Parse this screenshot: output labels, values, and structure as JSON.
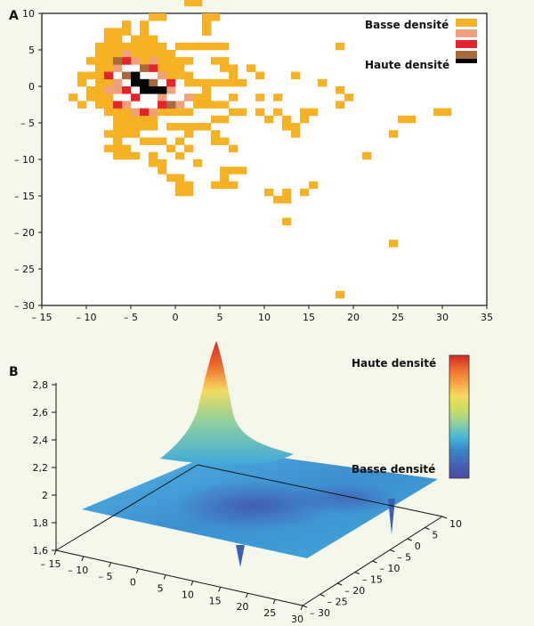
{
  "panels": {
    "a": "A",
    "b": "B"
  },
  "chart_data": [
    {
      "type": "heatmap",
      "panel": "A",
      "title": "",
      "xlabel": "",
      "ylabel": "",
      "xlim": [
        -15,
        35
      ],
      "ylim": [
        -30,
        10
      ],
      "xticks": [
        -15,
        -10,
        -5,
        0,
        5,
        10,
        15,
        20,
        25,
        30,
        35
      ],
      "yticks": [
        10,
        5,
        0,
        -5,
        -10,
        -15,
        -20,
        -25,
        -30
      ],
      "xtick_labels": [
        "– 15",
        "– 10",
        "– 5",
        "0",
        "5",
        "10",
        "15",
        "20",
        "25",
        "30",
        "35"
      ],
      "ytick_labels": [
        "10",
        "5",
        "0",
        "– 5",
        "– 10",
        "– 15",
        "– 20",
        "– 25",
        "– 30"
      ],
      "grid": false,
      "legend": {
        "placement": "top-right",
        "label_low": "Basse densité",
        "label_high": "Haute densité",
        "levels": [
          "#f7b125",
          "#f0a07a",
          "#e8222c",
          "#a86a3a",
          "#000000"
        ]
      },
      "cell_size": 1,
      "cells": [
        {
          "x": -5,
          "y": 0,
          "level": 4
        },
        {
          "x": -4,
          "y": 0,
          "level": 4
        },
        {
          "x": -5,
          "y": 1,
          "level": 4
        },
        {
          "x": -4,
          "y": -1,
          "level": 4
        },
        {
          "x": -3,
          "y": -1,
          "level": 4
        },
        {
          "x": -2,
          "y": -1,
          "level": 4
        },
        {
          "x": -7,
          "y": 3,
          "level": 3
        },
        {
          "x": -6,
          "y": 1,
          "level": 3
        },
        {
          "x": -3,
          "y": 0,
          "level": 3
        },
        {
          "x": -1,
          "y": -3,
          "level": 3
        },
        {
          "x": -4,
          "y": 2,
          "level": 3
        },
        {
          "x": -8,
          "y": 1,
          "level": 2
        },
        {
          "x": -6,
          "y": 3,
          "level": 2
        },
        {
          "x": -3,
          "y": 2,
          "level": 2
        },
        {
          "x": -6,
          "y": -1,
          "level": 2
        },
        {
          "x": -2,
          "y": -3,
          "level": 2
        },
        {
          "x": -5,
          "y": -2,
          "level": 2
        },
        {
          "x": -7,
          "y": -3,
          "level": 2
        },
        {
          "x": -1,
          "y": 0,
          "level": 2
        },
        {
          "x": -4,
          "y": -4,
          "level": 2
        },
        {
          "x": -7,
          "y": 2,
          "level": 1
        },
        {
          "x": -5,
          "y": 3,
          "level": 1
        },
        {
          "x": -3,
          "y": 3,
          "level": 1
        },
        {
          "x": -2,
          "y": 1,
          "level": 1
        },
        {
          "x": -7,
          "y": 0,
          "level": 1
        },
        {
          "x": -7,
          "y": -1,
          "level": 1
        },
        {
          "x": -1,
          "y": -1,
          "level": 1
        },
        {
          "x": -2,
          "y": -2,
          "level": 1
        },
        {
          "x": 0,
          "y": -3,
          "level": 1
        },
        {
          "x": -6,
          "y": -3,
          "level": 1
        },
        {
          "x": -3,
          "y": -4,
          "level": 1
        },
        {
          "x": -6,
          "y": 4,
          "level": 1
        },
        {
          "x": 1,
          "y": -2,
          "level": 1
        },
        {
          "x": -8,
          "y": -1,
          "level": 1
        },
        {
          "x": -5,
          "y": -4,
          "level": 1
        }
      ],
      "low_cells": [
        [
          -9,
          3
        ],
        [
          -10,
          3
        ],
        [
          -11,
          1
        ],
        [
          -11,
          0
        ],
        [
          -10,
          1
        ],
        [
          -10,
          -1
        ],
        [
          -10,
          -2
        ],
        [
          -11,
          -3
        ],
        [
          -12,
          -2
        ],
        [
          -9,
          5
        ],
        [
          -8,
          5
        ],
        [
          -7,
          6
        ],
        [
          -6,
          7
        ],
        [
          -5,
          6
        ],
        [
          -4,
          7
        ],
        [
          -3,
          6
        ],
        [
          -2,
          5
        ],
        [
          -1,
          4
        ],
        [
          0,
          3
        ],
        [
          1,
          3
        ],
        [
          -8,
          6
        ],
        [
          -9,
          4
        ],
        [
          -8,
          4
        ],
        [
          -8,
          3
        ],
        [
          -9,
          2
        ],
        [
          -8,
          2
        ],
        [
          -9,
          1
        ],
        [
          -9,
          0
        ],
        [
          -8,
          0
        ],
        [
          -9,
          -1
        ],
        [
          -9,
          -2
        ],
        [
          -8,
          -2
        ],
        [
          -9,
          -3
        ],
        [
          -8,
          -3
        ],
        [
          -8,
          -4
        ],
        [
          -7,
          -4
        ],
        [
          -6,
          -4
        ],
        [
          -7,
          -5
        ],
        [
          -6,
          -5
        ],
        [
          -5,
          -5
        ],
        [
          -4,
          -5
        ],
        [
          -3,
          -5
        ],
        [
          -2,
          -4
        ],
        [
          -1,
          -4
        ],
        [
          0,
          -4
        ],
        [
          1,
          -4
        ],
        [
          2,
          -3
        ],
        [
          2,
          -2
        ],
        [
          3,
          -2
        ],
        [
          3,
          -1
        ],
        [
          2,
          0
        ],
        [
          1,
          0
        ],
        [
          1,
          1
        ],
        [
          0,
          1
        ],
        [
          -1,
          1
        ],
        [
          -1,
          2
        ],
        [
          0,
          2
        ],
        [
          -2,
          2
        ],
        [
          -2,
          3
        ],
        [
          -1,
          3
        ],
        [
          -4,
          3
        ],
        [
          -4,
          4
        ],
        [
          -5,
          4
        ],
        [
          -3,
          4
        ],
        [
          -2,
          4
        ],
        [
          -7,
          4
        ],
        [
          -6,
          5
        ],
        [
          -5,
          5
        ],
        [
          -4,
          5
        ],
        [
          -4,
          6
        ],
        [
          -3,
          5
        ],
        [
          -7,
          5
        ],
        [
          -4,
          8
        ],
        [
          -6,
          8
        ],
        [
          -3,
          9
        ],
        [
          -2,
          9
        ],
        [
          -3,
          12
        ],
        [
          -2,
          12
        ],
        [
          -4,
          13
        ],
        [
          0,
          13
        ],
        [
          1,
          13
        ],
        [
          2,
          13
        ],
        [
          3,
          13
        ],
        [
          1,
          12
        ],
        [
          2,
          12
        ],
        [
          1,
          11
        ],
        [
          2,
          11
        ],
        [
          0,
          5
        ],
        [
          1,
          5
        ],
        [
          2,
          5
        ],
        [
          3,
          5
        ],
        [
          4,
          5
        ],
        [
          5,
          5
        ],
        [
          4,
          3
        ],
        [
          5,
          3
        ],
        [
          5,
          2
        ],
        [
          6,
          2
        ],
        [
          3,
          0
        ],
        [
          4,
          0
        ],
        [
          5,
          0
        ],
        [
          6,
          1
        ],
        [
          6,
          0
        ],
        [
          7,
          0
        ],
        [
          3,
          -3
        ],
        [
          4,
          -3
        ],
        [
          5,
          -3
        ],
        [
          6,
          -4
        ],
        [
          7,
          -4
        ],
        [
          6,
          -2
        ],
        [
          4,
          -5
        ],
        [
          5,
          -5
        ],
        [
          3,
          -6
        ],
        [
          2,
          -6
        ],
        [
          1,
          -6
        ],
        [
          0,
          -6
        ],
        [
          -1,
          -6
        ],
        [
          -6,
          -6
        ],
        [
          -5,
          -6
        ],
        [
          -4,
          -6
        ],
        [
          -3,
          -6
        ],
        [
          -7,
          -6
        ],
        [
          -8,
          -7
        ],
        [
          -7,
          -7
        ],
        [
          -6,
          -7
        ],
        [
          -5,
          -7
        ],
        [
          -4,
          -8
        ],
        [
          -3,
          -8
        ],
        [
          -2,
          -8
        ],
        [
          -7,
          -8
        ],
        [
          -8,
          -9
        ],
        [
          -7,
          -9
        ],
        [
          -6,
          -9
        ],
        [
          -5,
          -10
        ],
        [
          -6,
          -10
        ],
        [
          -7,
          -10
        ],
        [
          -3,
          -10
        ],
        [
          -2,
          -11
        ],
        [
          -3,
          -11
        ],
        [
          1,
          -9
        ],
        [
          0,
          -10
        ],
        [
          2,
          -11
        ],
        [
          4,
          -8
        ],
        [
          4,
          -7
        ],
        [
          5,
          -8
        ],
        [
          6,
          -9
        ],
        [
          0,
          -8
        ],
        [
          1,
          -7
        ],
        [
          -1,
          -9
        ],
        [
          -2,
          -12
        ],
        [
          -1,
          -13
        ],
        [
          0,
          -13
        ],
        [
          0,
          -14
        ],
        [
          1,
          -14
        ],
        [
          0,
          -15
        ],
        [
          1,
          -15
        ],
        [
          4,
          -14
        ],
        [
          5,
          -14
        ],
        [
          6,
          -14
        ],
        [
          5,
          -13
        ],
        [
          6,
          -12
        ],
        [
          7,
          -12
        ],
        [
          5,
          -12
        ],
        [
          10,
          -15
        ],
        [
          11,
          -16
        ],
        [
          12,
          -16
        ],
        [
          12,
          -15
        ],
        [
          14,
          -15
        ],
        [
          15,
          -14
        ],
        [
          12,
          -19
        ],
        [
          9,
          -2
        ],
        [
          9,
          -4
        ],
        [
          10,
          -5
        ],
        [
          11,
          -4
        ],
        [
          12,
          -5
        ],
        [
          12,
          -6
        ],
        [
          13,
          -6
        ],
        [
          13,
          -7
        ],
        [
          14,
          -5
        ],
        [
          14,
          -4
        ],
        [
          15,
          -4
        ],
        [
          11,
          -2
        ],
        [
          13,
          1
        ],
        [
          16,
          0
        ],
        [
          18,
          -1
        ],
        [
          19,
          -2
        ],
        [
          18,
          -3
        ],
        [
          18,
          5
        ],
        [
          8,
          2
        ],
        [
          9,
          1
        ],
        [
          3,
          9
        ],
        [
          4,
          9
        ],
        [
          3,
          8
        ],
        [
          3,
          7
        ],
        [
          -7,
          7
        ],
        [
          -8,
          7
        ],
        [
          21,
          -10
        ],
        [
          24,
          -7
        ],
        [
          25,
          -5
        ],
        [
          26,
          -5
        ],
        [
          29,
          -4
        ],
        [
          30,
          -4
        ],
        [
          24,
          -22
        ],
        [
          18,
          -29
        ]
      ]
    },
    {
      "type": "surface3d",
      "panel": "B",
      "title": "",
      "zlim": [
        1.6,
        2.8
      ],
      "zticks": [
        1.6,
        1.8,
        2.0,
        2.2,
        2.4,
        2.6,
        2.8
      ],
      "ztick_labels": [
        "1,6",
        "1,8",
        "2",
        "2,2",
        "2,4",
        "2,6",
        "2,8"
      ],
      "xticks": [
        -15,
        -10,
        -5,
        0,
        5,
        10,
        15,
        20,
        25,
        30
      ],
      "xtick_labels": [
        "– 15",
        "– 10",
        "– 5",
        "0",
        "5",
        "10",
        "15",
        "20",
        "25",
        "30"
      ],
      "yticks": [
        10,
        5,
        0,
        -5,
        -10,
        -15,
        -20,
        -25,
        -30
      ],
      "ytick_labels": [
        "10",
        "5",
        "0",
        "– 5",
        "– 10",
        "– 15",
        "– 20",
        "– 25",
        "– 30"
      ],
      "peak": {
        "x": -5,
        "y": 0,
        "z": 2.85
      },
      "colorbar": {
        "label_high": "Haute densité",
        "label_low": "Basse densité",
        "colors": [
          "#d42a24",
          "#ee6b2c",
          "#f6a542",
          "#f5db5e",
          "#c9dc62",
          "#8fd0a0",
          "#45b7d9",
          "#3a82c6",
          "#4761b8",
          "#4b4aa0"
        ]
      }
    }
  ]
}
